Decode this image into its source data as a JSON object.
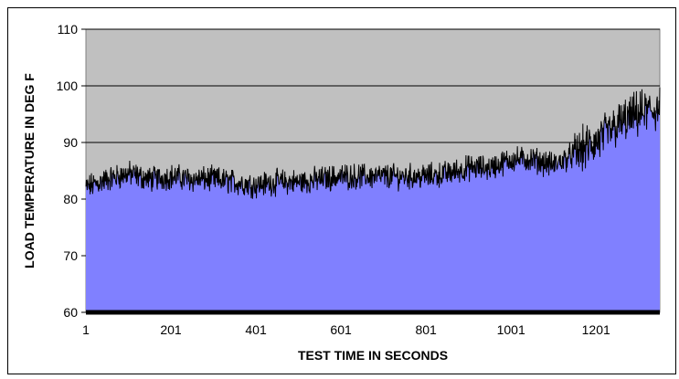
{
  "chart_data": {
    "type": "area",
    "title": "",
    "xlabel": "TEST TIME IN SECONDS",
    "ylabel": "LOAD TEMPERATURE IN DEG F",
    "xlim": [
      1,
      1351
    ],
    "ylim": [
      60,
      110
    ],
    "x_ticks": [
      "1",
      "201",
      "401",
      "601",
      "801",
      "1001",
      "1201"
    ],
    "y_ticks": [
      "60",
      "70",
      "80",
      "90",
      "100",
      "110"
    ],
    "grid": "horizontal",
    "plot_background": "#c0c0c0",
    "fill_color": "#8080ff",
    "line_color": "#000000",
    "series": [
      {
        "x": [
          1,
          51,
          101,
          151,
          201,
          251,
          301,
          351,
          401,
          451,
          501,
          551,
          601,
          651,
          701,
          751,
          801,
          851,
          901,
          951,
          1001,
          1051,
          1101,
          1151,
          1201,
          1251,
          1301,
          1351
        ],
        "values": [
          82,
          83.5,
          84.5,
          83.5,
          84,
          83.5,
          83.5,
          83,
          82.5,
          83,
          83,
          83.5,
          84,
          84,
          84,
          84,
          84,
          84.5,
          85.5,
          85.5,
          87,
          87,
          86,
          88,
          90,
          93,
          95,
          96
        ]
      }
    ]
  }
}
